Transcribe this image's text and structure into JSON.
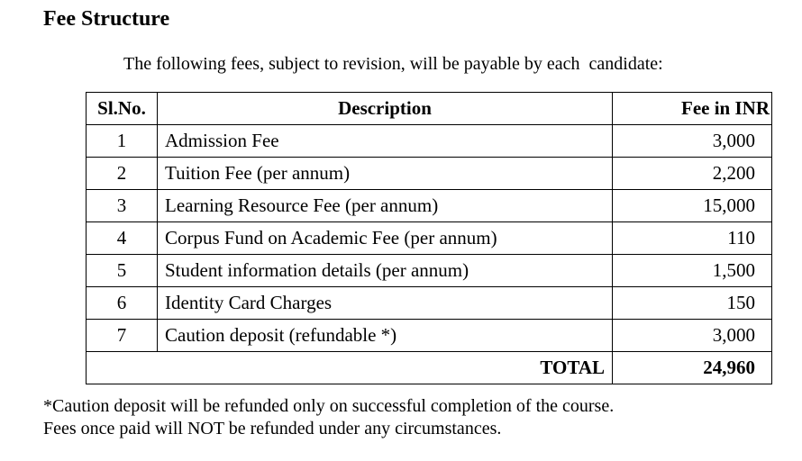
{
  "title": "Fee Structure",
  "intro": "The following fees, subject to revision, will be payable by each  candidate:",
  "table": {
    "headers": [
      "Sl.No.",
      "Description",
      "Fee in INR"
    ],
    "rows": [
      {
        "no": "1",
        "desc": "Admission Fee",
        "fee": "3,000"
      },
      {
        "no": "2",
        "desc": "Tuition Fee (per annum)",
        "fee": "2,200"
      },
      {
        "no": "3",
        "desc": "Learning Resource Fee (per annum)",
        "fee": "15,000"
      },
      {
        "no": "4",
        "desc": "Corpus Fund on Academic Fee (per annum)",
        "fee": "110"
      },
      {
        "no": "5",
        "desc": "Student information details (per annum)",
        "fee": "1,500"
      },
      {
        "no": "6",
        "desc": "Identity Card Charges",
        "fee": "150"
      },
      {
        "no": "7",
        "desc": "Caution deposit (refundable *)",
        "fee": "3,000"
      }
    ],
    "total_label": "TOTAL",
    "total_value": "24,960"
  },
  "notes": [
    "*Caution deposit will be refunded only on successful completion of the course.",
    "Fees once paid will NOT be refunded under any circumstances."
  ]
}
